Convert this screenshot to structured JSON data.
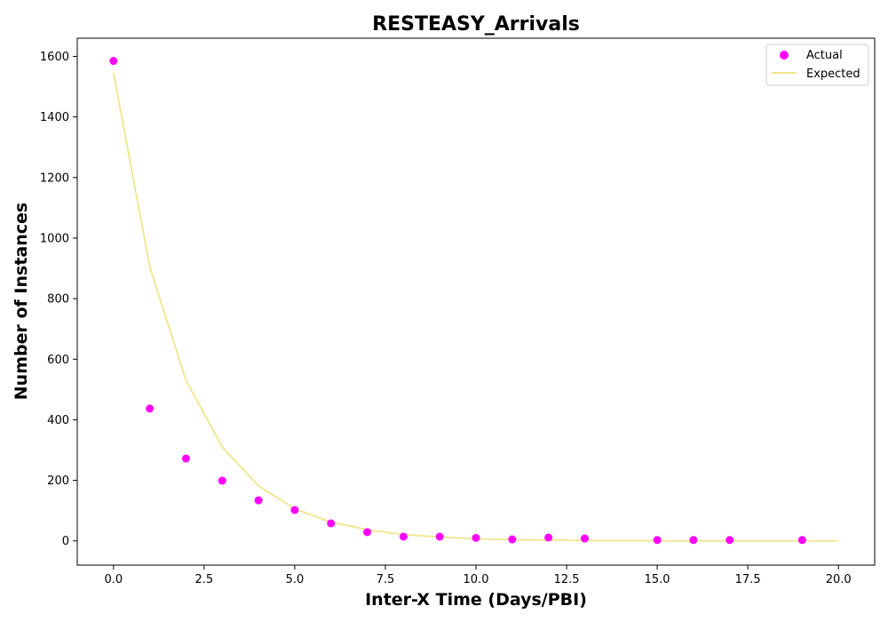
{
  "chart_data": {
    "type": "scatter",
    "title": "RESTEASY_Arrivals",
    "xlabel": "Inter-X Time (Days/PBI)",
    "ylabel": "Number of Instances",
    "xlim": [
      -1.0,
      21.0
    ],
    "ylim": [
      -80,
      1660
    ],
    "xticks": [
      0.0,
      2.5,
      5.0,
      7.5,
      10.0,
      12.5,
      15.0,
      17.5,
      20.0
    ],
    "xtick_labels": [
      "0.0",
      "2.5",
      "5.0",
      "7.5",
      "10.0",
      "12.5",
      "15.0",
      "17.5",
      "20.0"
    ],
    "yticks": [
      0,
      200,
      400,
      600,
      800,
      1000,
      1200,
      1400,
      1600
    ],
    "ytick_labels": [
      "0",
      "200",
      "400",
      "600",
      "800",
      "1000",
      "1200",
      "1400",
      "1600"
    ],
    "grid": false,
    "legend_position": "top-right",
    "series": [
      {
        "name": "Actual",
        "kind": "scatter",
        "color": "#ff00ff",
        "points": [
          {
            "x": 0,
            "y": 1585
          },
          {
            "x": 1,
            "y": 437
          },
          {
            "x": 2,
            "y": 272
          },
          {
            "x": 3,
            "y": 199
          },
          {
            "x": 4,
            "y": 134
          },
          {
            "x": 5,
            "y": 102
          },
          {
            "x": 6,
            "y": 58
          },
          {
            "x": 7,
            "y": 29
          },
          {
            "x": 8,
            "y": 14
          },
          {
            "x": 9,
            "y": 14
          },
          {
            "x": 10,
            "y": 10
          },
          {
            "x": 11,
            "y": 5
          },
          {
            "x": 12,
            "y": 11
          },
          {
            "x": 13,
            "y": 8
          },
          {
            "x": 15,
            "y": 3
          },
          {
            "x": 16,
            "y": 3
          },
          {
            "x": 17,
            "y": 3
          },
          {
            "x": 19,
            "y": 3
          }
        ]
      },
      {
        "name": "Expected",
        "kind": "line",
        "color": "#f0e68c",
        "points": [
          {
            "x": 0,
            "y": 1545
          },
          {
            "x": 1,
            "y": 905
          },
          {
            "x": 2,
            "y": 530
          },
          {
            "x": 3,
            "y": 310
          },
          {
            "x": 4,
            "y": 182
          },
          {
            "x": 5,
            "y": 106
          },
          {
            "x": 6,
            "y": 62
          },
          {
            "x": 7,
            "y": 37
          },
          {
            "x": 8,
            "y": 21
          },
          {
            "x": 9,
            "y": 13
          },
          {
            "x": 10,
            "y": 7
          },
          {
            "x": 11,
            "y": 4
          },
          {
            "x": 12,
            "y": 3
          },
          {
            "x": 13,
            "y": 1
          },
          {
            "x": 14,
            "y": 1
          },
          {
            "x": 15,
            "y": 0
          },
          {
            "x": 16,
            "y": 0
          },
          {
            "x": 17,
            "y": 0
          },
          {
            "x": 18,
            "y": 0
          },
          {
            "x": 19,
            "y": 0
          },
          {
            "x": 20,
            "y": 0
          }
        ]
      }
    ]
  }
}
